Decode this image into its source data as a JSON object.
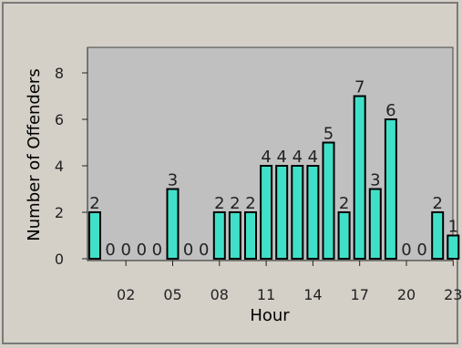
{
  "chart_data": {
    "type": "bar",
    "xlabel": "Hour",
    "ylabel": "Number of Offenders",
    "ylim": [
      0,
      9
    ],
    "yticks": [
      "0",
      "2",
      "4",
      "6",
      "8"
    ],
    "xticks": [
      "02",
      "05",
      "08",
      "11",
      "14",
      "17",
      "20",
      "23"
    ],
    "hours": [
      0,
      1,
      2,
      3,
      4,
      5,
      6,
      7,
      8,
      9,
      10,
      11,
      12,
      13,
      14,
      15,
      16,
      17,
      18,
      19,
      20,
      21,
      22,
      23
    ],
    "values": [
      2,
      0,
      0,
      0,
      0,
      3,
      0,
      0,
      2,
      2,
      2,
      4,
      4,
      4,
      4,
      5,
      2,
      7,
      3,
      6,
      0,
      0,
      2,
      1
    ],
    "bar_color": "#40e0c8",
    "plot_background": "#c0c0c0",
    "grid": false
  }
}
